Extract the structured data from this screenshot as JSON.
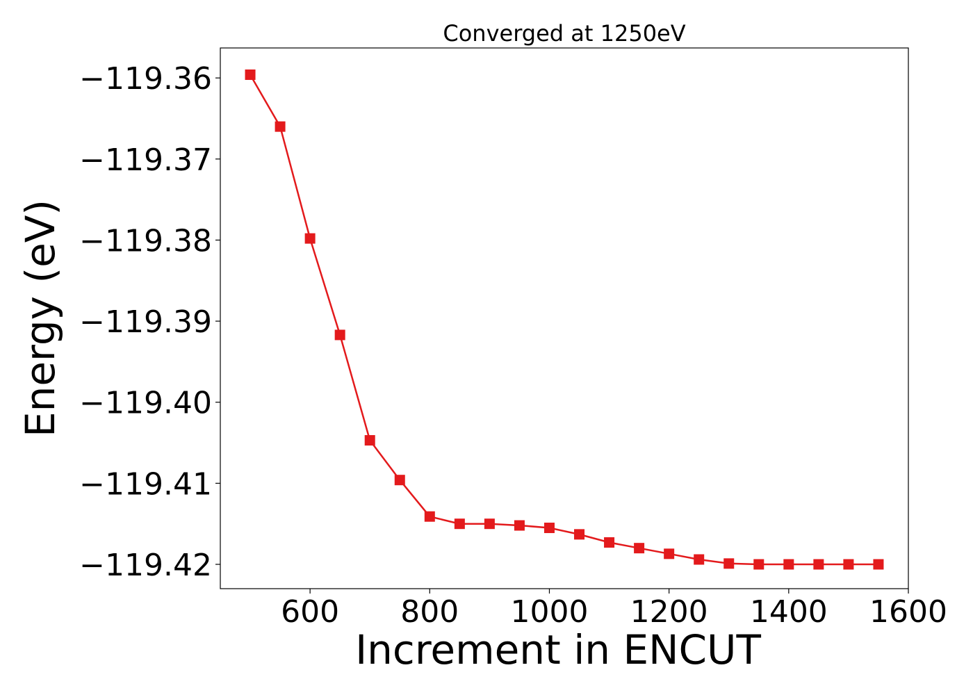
{
  "chart_data": {
    "type": "line",
    "title": "Converged at 1250eV",
    "xlabel": "Increment in ENCUT",
    "ylabel": "Energy (eV)",
    "xlim": [
      450,
      1600
    ],
    "ylim": [
      -119.423,
      -119.3563
    ],
    "xticks": [
      600,
      800,
      1000,
      1200,
      1400,
      1600
    ],
    "xtick_labels": [
      "600",
      "800",
      "1000",
      "1200",
      "1400",
      "1600"
    ],
    "yticks": [
      -119.36,
      -119.37,
      -119.38,
      -119.39,
      -119.4,
      -119.41,
      -119.42
    ],
    "ytick_labels": [
      "−119.36",
      "−119.37",
      "−119.38",
      "−119.39",
      "−119.40",
      "−119.41",
      "−119.42"
    ],
    "grid": false,
    "series": [
      {
        "color": "#e31a1c",
        "marker": "square",
        "x": [
          500,
          550,
          600,
          650,
          700,
          750,
          800,
          850,
          900,
          950,
          1000,
          1050,
          1100,
          1150,
          1200,
          1250,
          1300,
          1350,
          1400,
          1450,
          1500,
          1550
        ],
        "y": [
          -119.3596,
          -119.366,
          -119.3798,
          -119.3917,
          -119.4047,
          -119.4096,
          -119.4141,
          -119.415,
          -119.415,
          -119.4152,
          -119.4155,
          -119.4163,
          -119.4173,
          -119.418,
          -119.4187,
          -119.4194,
          -119.4199,
          -119.42,
          -119.42,
          -119.42,
          -119.42,
          -119.42
        ]
      }
    ]
  }
}
